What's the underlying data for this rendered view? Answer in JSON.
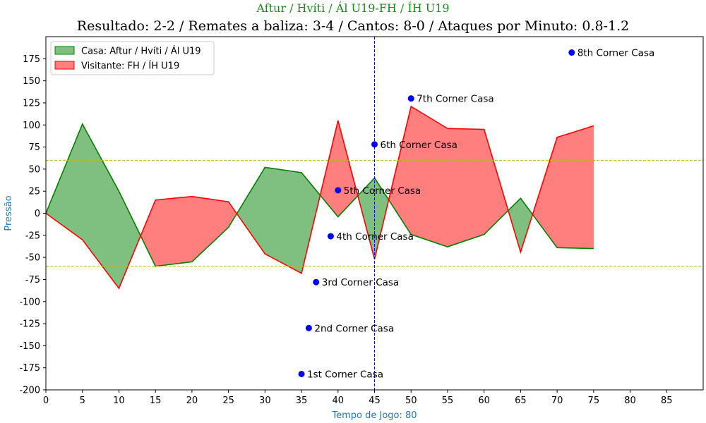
{
  "chart_data": {
    "type": "area",
    "suptitle": "Aftur / Hvíti / Ál U19-FH / ÍH U19",
    "title": "Resultado: 2-2 / Remates a baliza: 3-4 / Cantos: 8-0 / Ataques por Minuto: 0.8-1.2",
    "xlabel": "Tempo de Jogo: 80",
    "ylabel": "Pressão",
    "xlim": [
      0,
      90
    ],
    "ylim": [
      -200,
      200
    ],
    "xticks": [
      0,
      5,
      10,
      15,
      20,
      25,
      30,
      35,
      40,
      45,
      50,
      55,
      60,
      65,
      70,
      75,
      80,
      85
    ],
    "yticks": [
      -200,
      -175,
      -150,
      -125,
      -100,
      -75,
      -50,
      -25,
      0,
      25,
      50,
      75,
      100,
      125,
      150,
      175
    ],
    "grid": false,
    "legend_position": "upper-left",
    "x": [
      0,
      5,
      10,
      15,
      20,
      25,
      30,
      35,
      40,
      45,
      50,
      55,
      60,
      65,
      70,
      75
    ],
    "series": [
      {
        "name": "Casa: Aftur / Hvíti / Ál U19",
        "color": "#008000",
        "fill": "#7fbf7f",
        "values": [
          0,
          101,
          25,
          -60,
          -55,
          -16,
          52,
          46,
          -4,
          40,
          -24,
          -38,
          -24,
          17,
          -39,
          -40
        ]
      },
      {
        "name": "Visitante: FH / ÍH U19",
        "color": "#ff0000",
        "fill": "#ff7f7f",
        "values": [
          0,
          -30,
          -85,
          15,
          19,
          13,
          -46,
          -68,
          105,
          -52,
          121,
          96,
          95,
          -44,
          86,
          99
        ]
      }
    ],
    "threshold_lines": {
      "values": [
        60,
        -60
      ],
      "color": "#bfbf00"
    },
    "halftime_line": {
      "x": 45,
      "color": "#0000cc"
    },
    "corner_markers": {
      "color": "#0000ff",
      "points": [
        {
          "x": 35,
          "y": -182,
          "label": "1st Corner Casa"
        },
        {
          "x": 36,
          "y": -130,
          "label": "2nd Corner Casa"
        },
        {
          "x": 37,
          "y": -78,
          "label": "3rd Corner Casa"
        },
        {
          "x": 39,
          "y": -26,
          "label": "4th Corner Casa"
        },
        {
          "x": 40,
          "y": 26,
          "label": "5th Corner Casa"
        },
        {
          "x": 45,
          "y": 78,
          "label": "6th Corner Casa"
        },
        {
          "x": 50,
          "y": 130,
          "label": "7th Corner Casa"
        },
        {
          "x": 72,
          "y": 182,
          "label": "8th Corner Casa"
        }
      ]
    }
  }
}
